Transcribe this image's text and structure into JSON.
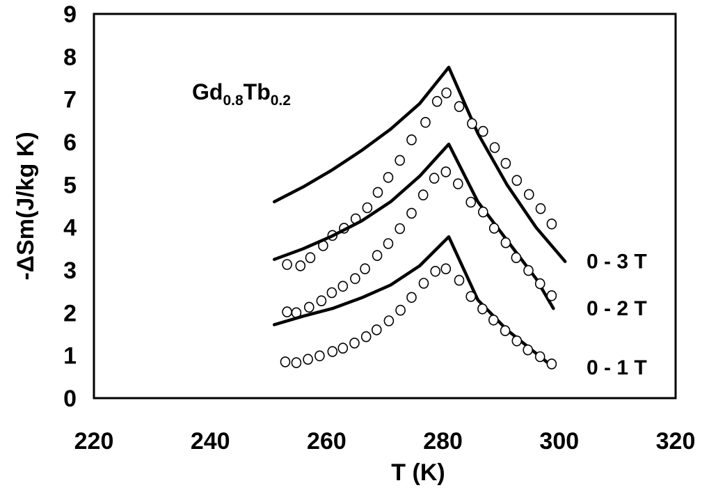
{
  "chart_data": {
    "type": "line",
    "xlabel": "T (K)",
    "ylabel": "-ΔSm(J/kg K)",
    "xlim": [
      220,
      320
    ],
    "ylim": [
      0,
      9
    ],
    "x_ticks": [
      "220",
      "240",
      "260",
      "280",
      "300",
      "320"
    ],
    "y_ticks": [
      "0",
      "1",
      "2",
      "3",
      "4",
      "5",
      "6",
      "7",
      "8",
      "9"
    ],
    "annotation": {
      "base1": "Gd",
      "sub1": "0.8",
      "base2": "Tb",
      "sub2": "0.2"
    },
    "series": [
      {
        "name": "0 - 3 T",
        "lines": [
          [
            251,
            4.6
          ],
          [
            256,
            4.95
          ],
          [
            261,
            5.35
          ],
          [
            266,
            5.8
          ],
          [
            271,
            6.3
          ],
          [
            276,
            6.9
          ],
          [
            281,
            7.75
          ],
          [
            286,
            6.2
          ],
          [
            291,
            5.0
          ],
          [
            296,
            4.0
          ],
          [
            301,
            3.2
          ]
        ],
        "points": [
          [
            253.2,
            3.13
          ],
          [
            255.5,
            3.1
          ],
          [
            257.2,
            3.29
          ],
          [
            259.4,
            3.57
          ],
          [
            261.0,
            3.81
          ],
          [
            263.0,
            3.98
          ],
          [
            265.0,
            4.2
          ],
          [
            267.0,
            4.46
          ],
          [
            268.8,
            4.82
          ],
          [
            270.6,
            5.17
          ],
          [
            272.6,
            5.57
          ],
          [
            274.6,
            6.05
          ],
          [
            277.0,
            6.46
          ],
          [
            279.0,
            6.95
          ],
          [
            280.6,
            7.15
          ],
          [
            282.8,
            6.83
          ],
          [
            285.0,
            6.43
          ],
          [
            286.9,
            6.25
          ],
          [
            288.9,
            5.87
          ],
          [
            290.8,
            5.5
          ],
          [
            292.7,
            5.1
          ],
          [
            294.8,
            4.77
          ],
          [
            296.8,
            4.44
          ],
          [
            298.7,
            4.08
          ]
        ]
      },
      {
        "name": "0 - 2 T",
        "lines": [
          [
            251,
            3.25
          ],
          [
            256,
            3.5
          ],
          [
            261,
            3.8
          ],
          [
            266,
            4.15
          ],
          [
            271,
            4.6
          ],
          [
            276,
            5.2
          ],
          [
            281,
            5.95
          ],
          [
            286,
            4.6
          ],
          [
            291,
            3.7
          ],
          [
            296,
            2.8
          ],
          [
            299,
            2.1
          ]
        ],
        "points": [
          [
            253.2,
            2.02
          ],
          [
            254.8,
            2.0
          ],
          [
            257.0,
            2.13
          ],
          [
            259.1,
            2.28
          ],
          [
            260.9,
            2.47
          ],
          [
            262.8,
            2.62
          ],
          [
            264.9,
            2.8
          ],
          [
            266.6,
            3.03
          ],
          [
            268.7,
            3.34
          ],
          [
            270.6,
            3.62
          ],
          [
            272.6,
            3.97
          ],
          [
            274.6,
            4.33
          ],
          [
            276.6,
            4.76
          ],
          [
            278.5,
            5.15
          ],
          [
            280.5,
            5.3
          ],
          [
            282.6,
            5.02
          ],
          [
            284.8,
            4.59
          ],
          [
            286.9,
            4.36
          ],
          [
            288.8,
            3.98
          ],
          [
            290.8,
            3.64
          ],
          [
            292.6,
            3.29
          ],
          [
            294.7,
            2.99
          ],
          [
            296.7,
            2.68
          ],
          [
            298.7,
            2.4
          ]
        ]
      },
      {
        "name": "0 - 1 T",
        "lines": [
          [
            251,
            1.72
          ],
          [
            256,
            1.92
          ],
          [
            261,
            2.1
          ],
          [
            266,
            2.35
          ],
          [
            271,
            2.65
          ],
          [
            276,
            3.1
          ],
          [
            281,
            3.78
          ],
          [
            286,
            2.3
          ],
          [
            291,
            1.6
          ],
          [
            296,
            1.05
          ],
          [
            299,
            0.72
          ]
        ],
        "points": [
          [
            252.9,
            0.85
          ],
          [
            254.8,
            0.83
          ],
          [
            256.8,
            0.91
          ],
          [
            258.8,
            0.99
          ],
          [
            261.0,
            1.09
          ],
          [
            262.8,
            1.17
          ],
          [
            264.8,
            1.29
          ],
          [
            266.8,
            1.44
          ],
          [
            268.6,
            1.6
          ],
          [
            270.7,
            1.81
          ],
          [
            272.7,
            2.06
          ],
          [
            274.6,
            2.36
          ],
          [
            276.7,
            2.69
          ],
          [
            278.7,
            2.97
          ],
          [
            280.5,
            3.03
          ],
          [
            282.8,
            2.76
          ],
          [
            284.8,
            2.38
          ],
          [
            286.8,
            2.09
          ],
          [
            288.7,
            1.83
          ],
          [
            290.7,
            1.58
          ],
          [
            292.7,
            1.34
          ],
          [
            294.6,
            1.13
          ],
          [
            296.7,
            0.97
          ],
          [
            298.7,
            0.8
          ]
        ]
      }
    ]
  }
}
